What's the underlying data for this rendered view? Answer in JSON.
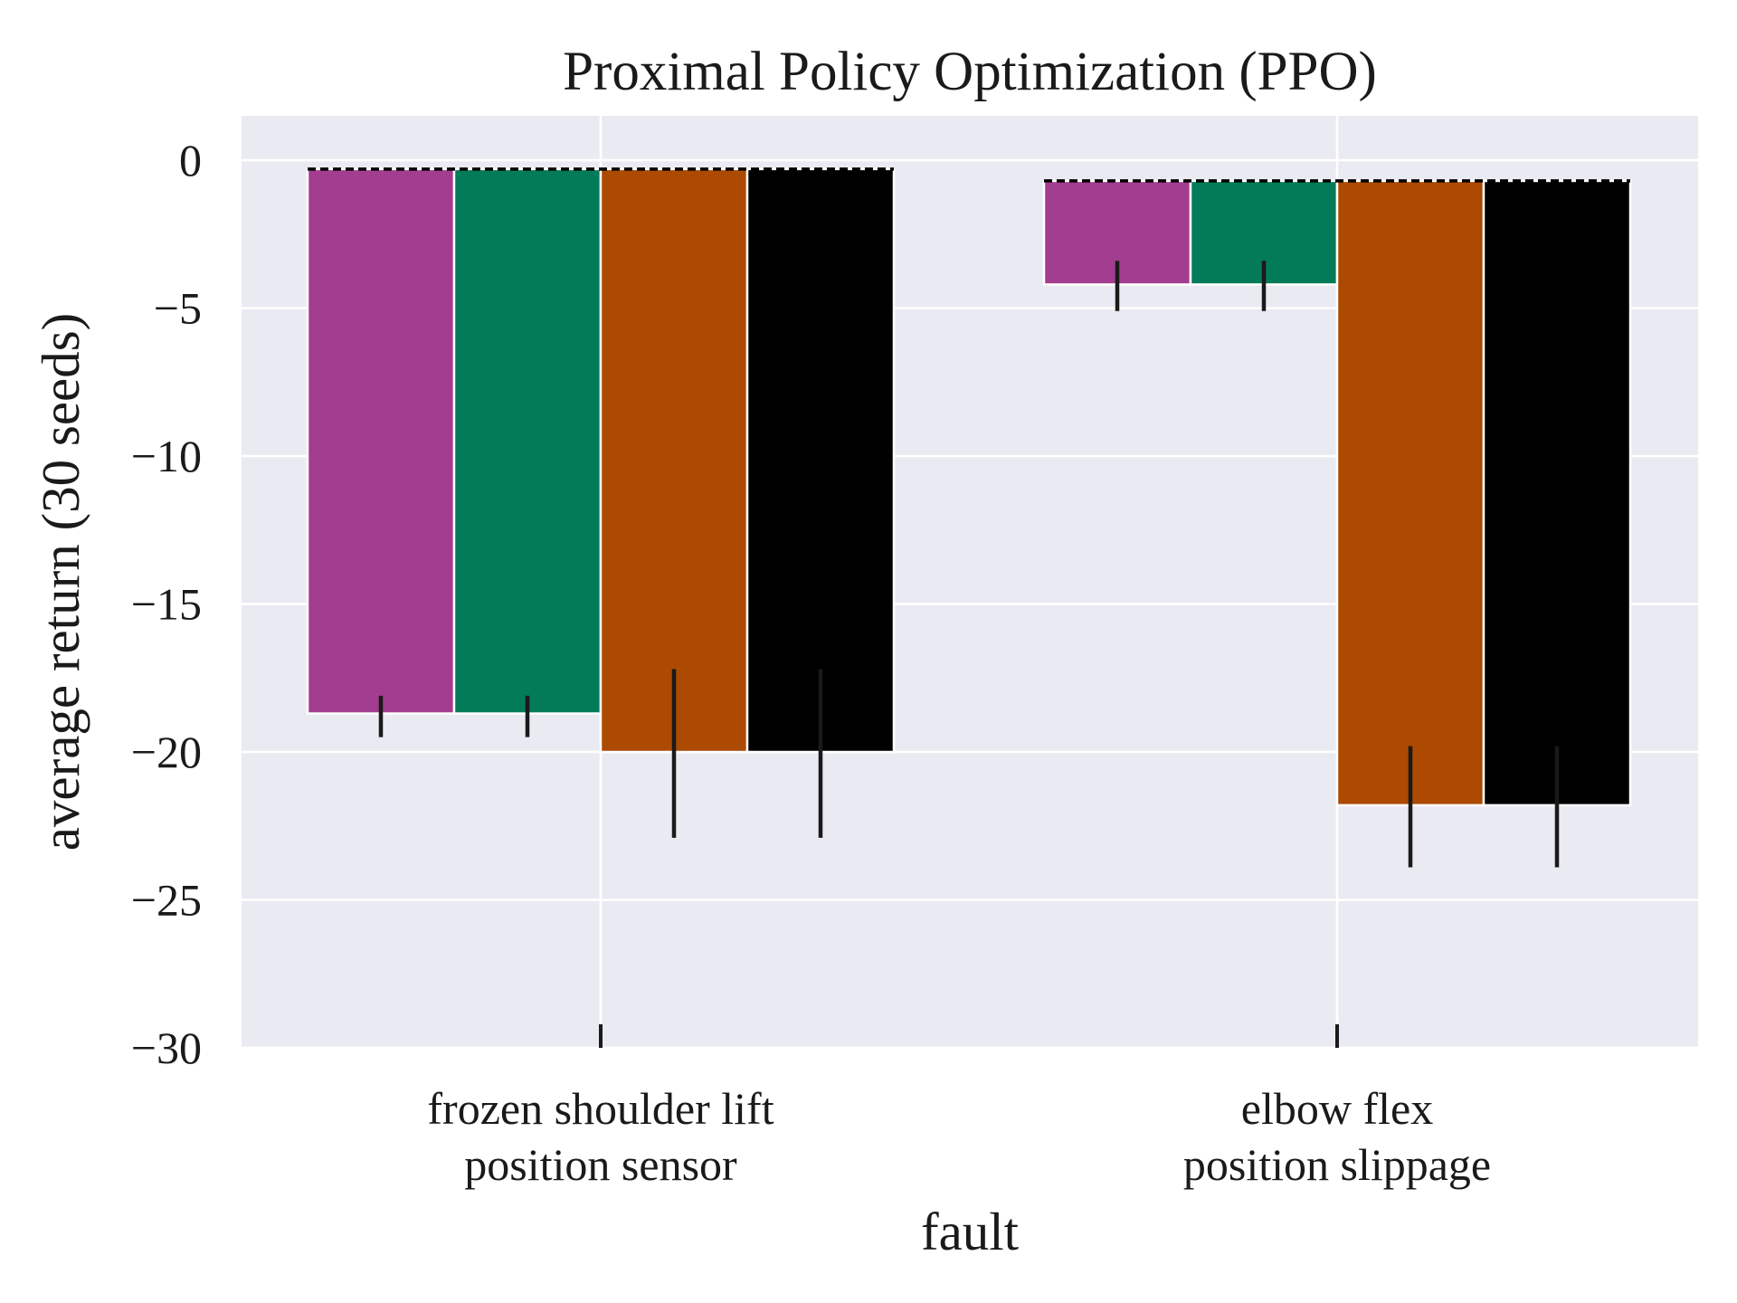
{
  "chart_data": {
    "type": "bar",
    "title": "Proximal Policy Optimization (PPO)",
    "xlabel": "fault",
    "ylabel": "average return (30 seeds)",
    "ylim": [
      -30,
      1.5
    ],
    "yticks": [
      0,
      -5,
      -10,
      -15,
      -20,
      -25,
      -30
    ],
    "ytick_labels": [
      "0",
      "−5",
      "−10",
      "−15",
      "−20",
      "−25",
      "−30"
    ],
    "categories": [
      [
        "frozen shoulder lift",
        "position sensor"
      ],
      [
        "elbow flex",
        "position slippage"
      ]
    ],
    "grid": true,
    "legend": "none",
    "baseline_top": [
      -0.3,
      -0.7
    ],
    "series": [
      {
        "color": "#a33d8f",
        "values": [
          -18.7,
          -4.2
        ],
        "error_low": [
          -19.5,
          -5.1
        ],
        "error_high": [
          -18.1,
          -3.4
        ]
      },
      {
        "color": "#037b58",
        "values": [
          -18.7,
          -4.2
        ],
        "error_low": [
          -19.5,
          -5.1
        ],
        "error_high": [
          -18.1,
          -3.4
        ]
      },
      {
        "color": "#ab4a00",
        "values": [
          -20.0,
          -21.8
        ],
        "error_low": [
          -22.9,
          -23.9
        ],
        "error_high": [
          -17.2,
          -19.8
        ]
      },
      {
        "color": "#000000",
        "values": [
          -20.0,
          -21.8
        ],
        "error_low": [
          -22.9,
          -23.9
        ],
        "error_high": [
          -17.2,
          -19.8
        ]
      }
    ]
  }
}
